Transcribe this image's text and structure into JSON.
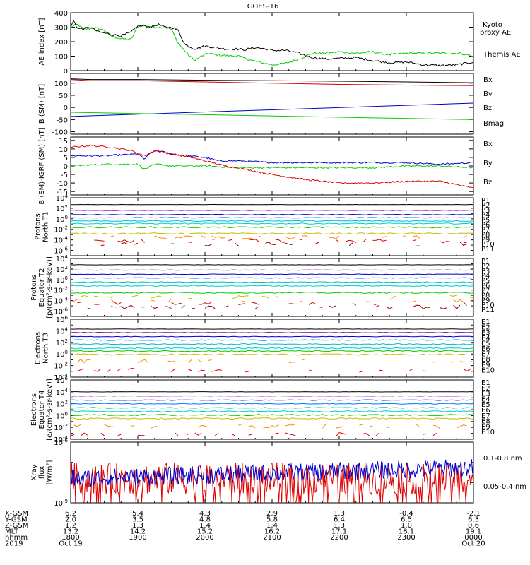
{
  "title": "GOES-16",
  "colors": {
    "black": "#000000",
    "green": "#00cc00",
    "blue": "#0000cc",
    "red": "#dd0000",
    "P": [
      "#000000",
      "#880099",
      "#0000cc",
      "#0077ff",
      "#00bbcc",
      "#00cccc",
      "#00cc00",
      "#ccbb00",
      "#ff8800",
      "#dd0000",
      "#990000"
    ],
    "E": [
      "#000000",
      "#880099",
      "#0000cc",
      "#0077ff",
      "#00bbcc",
      "#00cccc",
      "#00cc00",
      "#ccbb00",
      "#ff8800",
      "#dd0000"
    ]
  },
  "time_axis": {
    "start": "2019-10-19 18:00",
    "end": "2019-10-20 00:00",
    "rows": [
      {
        "label": "X-GSM",
        "values": [
          "6.2",
          "5.4",
          "4.3",
          "2.9",
          "1.3",
          "-0.4",
          "-2.1"
        ]
      },
      {
        "label": "Y-GSM",
        "values": [
          "2.0",
          "3.5",
          "4.8",
          "5.8",
          "6.4",
          "6.5",
          "6.3"
        ]
      },
      {
        "label": "Z-GSM",
        "values": [
          "1.2",
          "1.3",
          "1.4",
          "1.4",
          "1.3",
          "1.0",
          "0.6"
        ]
      },
      {
        "label": "MLT",
        "values": [
          "13.2",
          "14.2",
          "15.2",
          "16.2",
          "17.1",
          "18.1",
          "19.1"
        ]
      },
      {
        "label": "hhmm",
        "values": [
          "1800",
          "1900",
          "2000",
          "2100",
          "2200",
          "2300",
          "0000"
        ]
      },
      {
        "label": "2019",
        "values": [
          "Oct 19",
          "",
          "",
          "",
          "",
          "",
          "Oct 20"
        ]
      }
    ]
  },
  "chart_data": [
    {
      "type": "line",
      "id": "ae",
      "ylabel": "AE index [nT]",
      "ylim": [
        0,
        400
      ],
      "yticks": [
        "0",
        "100",
        "200",
        "300",
        "400"
      ],
      "legend": [
        "Kyoto proxy AE",
        "Themis AE"
      ],
      "series": [
        {
          "name": "Kyoto proxy AE",
          "color": "green",
          "x": [
            18.0,
            18.1,
            18.2,
            18.35,
            18.5,
            18.6,
            18.75,
            18.9,
            19.0,
            19.1,
            19.25,
            19.4,
            19.5,
            19.6,
            19.75,
            19.85,
            19.95,
            20.05,
            20.15,
            20.3,
            20.5,
            20.7,
            20.9,
            21.0,
            21.2,
            21.4,
            21.6,
            21.75,
            22.0,
            22.25,
            22.5,
            22.75,
            23.0,
            23.5,
            23.8,
            24.0
          ],
          "y": [
            300,
            320,
            285,
            295,
            280,
            240,
            220,
            215,
            305,
            310,
            300,
            300,
            285,
            190,
            110,
            70,
            100,
            120,
            110,
            105,
            100,
            70,
            50,
            40,
            50,
            80,
            120,
            120,
            130,
            120,
            130,
            110,
            120,
            120,
            120,
            100
          ]
        },
        {
          "name": "Themis AE",
          "color": "black",
          "x": [
            18.0,
            18.05,
            18.1,
            18.2,
            18.3,
            18.4,
            18.5,
            18.6,
            18.75,
            18.9,
            19.0,
            19.1,
            19.2,
            19.3,
            19.4,
            19.5,
            19.6,
            19.7,
            19.85,
            20.0,
            20.15,
            20.3,
            20.45,
            20.6,
            20.75,
            20.9,
            21.0,
            21.2,
            21.4,
            21.6,
            21.8,
            22.0,
            22.25,
            22.5,
            22.75,
            23.0,
            23.25,
            23.5,
            23.75,
            24.0
          ],
          "y": [
            300,
            350,
            290,
            290,
            300,
            270,
            260,
            250,
            240,
            265,
            310,
            310,
            300,
            320,
            300,
            300,
            280,
            180,
            150,
            170,
            160,
            150,
            150,
            145,
            160,
            150,
            140,
            140,
            120,
            90,
            80,
            85,
            90,
            70,
            55,
            60,
            40,
            35,
            40,
            60
          ]
        }
      ]
    },
    {
      "type": "line",
      "id": "bsm",
      "ylabel": "B (SM) [nT]",
      "ylim": [
        -110,
        140
      ],
      "yticks": [
        "-100",
        "-50",
        "0",
        "50",
        "100"
      ],
      "legend": [
        "Bx",
        "By",
        "Bz",
        "Bmag"
      ],
      "series": [
        {
          "name": "Bx",
          "color": "blue",
          "x": [
            18,
            24
          ],
          "y": [
            -37,
            18
          ]
        },
        {
          "name": "By",
          "color": "green",
          "x": [
            18,
            24
          ],
          "y": [
            -20,
            -50
          ]
        },
        {
          "name": "Bz",
          "color": "red",
          "x": [
            18,
            18.3,
            19.0,
            20.0,
            21.0,
            22.0,
            23.0,
            24.0
          ],
          "y": [
            115,
            110,
            110,
            105,
            100,
            95,
            92,
            90
          ]
        },
        {
          "name": "Bmag",
          "color": "black",
          "x": [
            18,
            18.3,
            19.0,
            20.0,
            21.0,
            22.0,
            23.0,
            24.0
          ],
          "y": [
            118,
            115,
            115,
            112,
            110,
            108,
            105,
            102
          ]
        }
      ]
    },
    {
      "type": "line",
      "id": "bigrf",
      "ylabel": "B (SM)-IGRF (SM) [nT]",
      "ylim": [
        -17,
        17
      ],
      "yticks": [
        "-15",
        "-10",
        "-5",
        "0",
        "5",
        "10",
        "15"
      ],
      "legend": [
        "Bx",
        "By",
        "Bz"
      ],
      "series": [
        {
          "name": "Bx",
          "color": "blue",
          "x": [
            18.0,
            18.5,
            19.0,
            19.1,
            19.2,
            19.3,
            19.5,
            20.0,
            20.2,
            20.5,
            21.0,
            21.5,
            22.0,
            22.5,
            23.0,
            23.5,
            24.0
          ],
          "y": [
            6,
            6,
            7,
            4,
            8,
            9,
            7,
            5,
            3,
            3,
            2,
            2,
            2,
            2,
            2,
            1,
            2
          ]
        },
        {
          "name": "By",
          "color": "green",
          "x": [
            18.0,
            18.5,
            19.0,
            19.1,
            19.2,
            19.3,
            19.5,
            20.0,
            20.5,
            21.0,
            21.5,
            22.0,
            22.5,
            23.0,
            23.5,
            24.0
          ],
          "y": [
            0,
            1,
            1,
            -2,
            0,
            1,
            0,
            0,
            -1,
            -1,
            -1,
            -1,
            -1,
            0,
            0,
            -1
          ]
        },
        {
          "name": "Bz",
          "color": "red",
          "x": [
            18.0,
            18.3,
            18.6,
            18.9,
            19.1,
            19.25,
            19.5,
            19.8,
            20.0,
            20.3,
            20.6,
            21.0,
            21.5,
            22.0,
            22.5,
            23.0,
            23.5,
            24.0
          ],
          "y": [
            11,
            12,
            11,
            9,
            6,
            9,
            7,
            5,
            3,
            0,
            -2,
            -5,
            -8,
            -10,
            -10,
            -9,
            -9,
            -13
          ]
        }
      ]
    },
    {
      "type": "line",
      "id": "p1",
      "scale": "log",
      "ylabel": "Protons North T1",
      "ylim_log10": [
        -7,
        4
      ],
      "yticks": [
        "10^-6",
        "10^-4",
        "10^-2",
        "10^0",
        "10^2",
        "10^4"
      ],
      "channels": [
        "P1",
        "P2",
        "P3",
        "P4",
        "P5",
        "P6",
        "P7",
        "P8",
        "P9",
        "P10",
        "P11"
      ],
      "series_levels_log10": [
        2.7,
        1.6,
        0.8,
        0.2,
        -0.4,
        -0.9,
        -1.6,
        -2.8,
        -3.5,
        -4.2,
        -4.8
      ]
    },
    {
      "type": "line",
      "id": "p2",
      "scale": "log",
      "ylabel": "Protons Equator T2 [p/(cm²-s-sr-keV)]",
      "ylim_log10": [
        -7,
        4
      ],
      "yticks": [
        "10^-6",
        "10^-4",
        "10^-2",
        "10^0",
        "10^2",
        "10^4"
      ],
      "channels": [
        "P1",
        "P2",
        "P3",
        "P4",
        "P5",
        "P6",
        "P7",
        "P8",
        "P9",
        "P10",
        "P11"
      ],
      "series_levels_log10": [
        2.8,
        1.8,
        1.0,
        0.3,
        -0.5,
        -1.2,
        -2.5,
        -3.3,
        -4.0,
        -4.6,
        -5.2
      ]
    },
    {
      "type": "line",
      "id": "e1",
      "scale": "log",
      "ylabel": "Electrons North T3",
      "ylim_log10": [
        -4,
        6
      ],
      "yticks": [
        "10^-4",
        "10^-2",
        "10^0",
        "10^2",
        "10^4",
        "10^6"
      ],
      "channels": [
        "E1",
        "E2",
        "E3",
        "E4",
        "E5",
        "E6",
        "E7",
        "E8",
        "E9",
        "E10"
      ],
      "series_levels_log10": [
        4.3,
        3.7,
        3.0,
        2.4,
        1.7,
        1.0,
        0.5,
        -0.1,
        -1.2,
        -2.8
      ]
    },
    {
      "type": "line",
      "id": "e2",
      "scale": "log",
      "ylabel": "Electrons Equator T4 [e/(cm²-s-sr-keV)]",
      "ylim_log10": [
        -4,
        6
      ],
      "yticks": [
        "10^-4",
        "10^-2",
        "10^0",
        "10^2",
        "10^4",
        "10^6"
      ],
      "channels": [
        "E1",
        "E2",
        "E3",
        "E4",
        "E5",
        "E6",
        "E7",
        "E8",
        "E9",
        "E10"
      ],
      "series_levels_log10": [
        4.0,
        3.3,
        2.6,
        2.0,
        1.3,
        0.7,
        0.1,
        -0.5,
        -1.8,
        -3.2
      ]
    },
    {
      "type": "line",
      "id": "xray",
      "scale": "log",
      "ylabel": "Xray flux [W/m²]",
      "ylim_log10": [
        -9,
        -6
      ],
      "yticks": [
        "10^-9",
        "10^-6"
      ],
      "legend": [
        "0.1-0.8 nm",
        "0.05-0.4 nm"
      ],
      "series": [
        {
          "name": "0.1-0.8 nm",
          "color": "red",
          "level_log10": -7.8
        },
        {
          "name": "0.05-0.4 nm",
          "color": "blue",
          "level_log10": -7.3
        }
      ]
    }
  ]
}
